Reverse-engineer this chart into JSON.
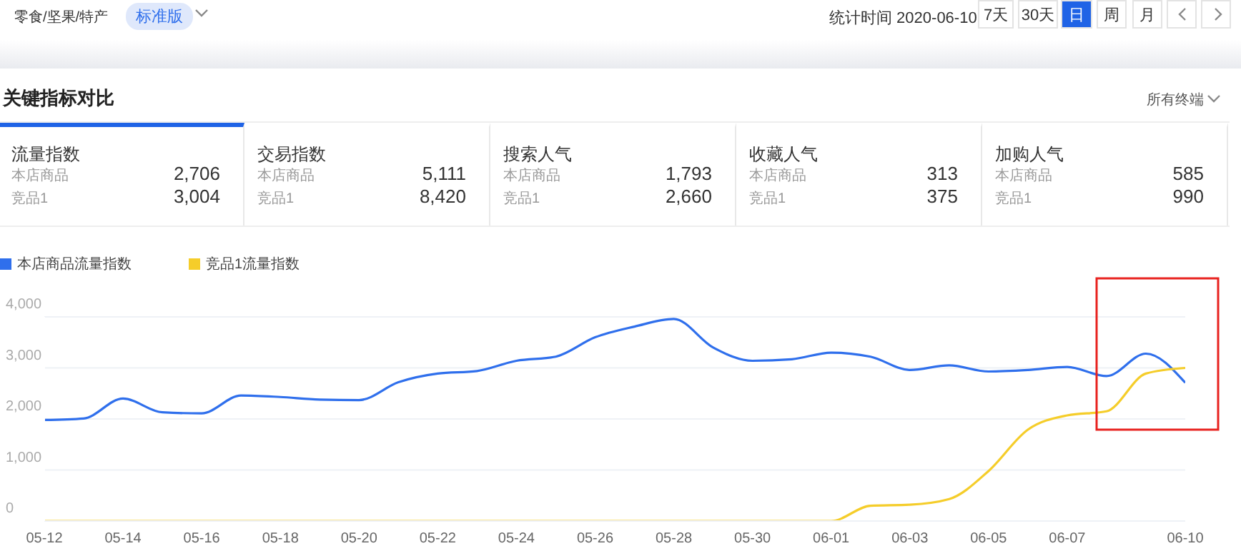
{
  "chart_data": [
    {
      "type": "other",
      "title": "关键指标对比",
      "annotations": [
        "零食/坚果/特产",
        "标准版",
        "统计时间 2020-06-10",
        "7天",
        "30天",
        "日",
        "周",
        "月",
        "所有终端",
        "流量指数",
        "本店商品",
        "2,706",
        "竞品1",
        "3,004",
        "交易指数",
        "本店商品",
        "5,111",
        "竞品1",
        "8,420",
        "搜索人气",
        "本店商品",
        "1,793",
        "竞品1",
        "2,660",
        "收藏人气",
        "本店商品",
        "313",
        "竞品1",
        "375",
        "加购人气",
        "本店商品",
        "585",
        "竞品1",
        "990"
      ]
    },
    {
      "type": "line",
      "categories": [
        "05-12",
        null,
        "05-14",
        null,
        "05-16",
        null,
        "05-18",
        null,
        "05-20",
        null,
        "05-22",
        null,
        "05-24",
        null,
        "05-26",
        null,
        "05-28",
        null,
        "05-30",
        null,
        "06-01",
        null,
        "06-03",
        null,
        "06-05",
        null,
        "06-07",
        null,
        null,
        "06-10"
      ],
      "series": [
        {
          "name": "本店商品流量指数",
          "color": "#2f6fec",
          "values": [
            1980,
            2010,
            2400,
            2130,
            2110,
            2460,
            2430,
            2380,
            2370,
            2720,
            2890,
            2940,
            3140,
            3220,
            3600,
            3810,
            3960,
            3400,
            3140,
            3170,
            3300,
            3220,
            2960,
            3050,
            2930,
            2960,
            3020,
            2840,
            3280,
            2710
          ]
        },
        {
          "name": "竞品1流量指数",
          "color": "#f5cd2a",
          "values": [
            0,
            0,
            0,
            0,
            0,
            0,
            0,
            0,
            0,
            0,
            0,
            0,
            0,
            0,
            0,
            0,
            0,
            0,
            0,
            0,
            0,
            300,
            320,
            430,
            980,
            1790,
            2070,
            2150,
            2890,
            3000
          ]
        }
      ],
      "ylim": [
        0,
        4000
      ],
      "yticks": [
        0,
        {
          "value": 1000,
          "label": "1,000"
        },
        {
          "value": 2000,
          "label": "2,000"
        },
        {
          "value": 3000,
          "label": "3,000"
        },
        {
          "value": 4000,
          "label": "4,000"
        }
      ],
      "grid": "y",
      "legend": "top left",
      "marker": "none",
      "line_style": "solid"
    }
  ]
}
